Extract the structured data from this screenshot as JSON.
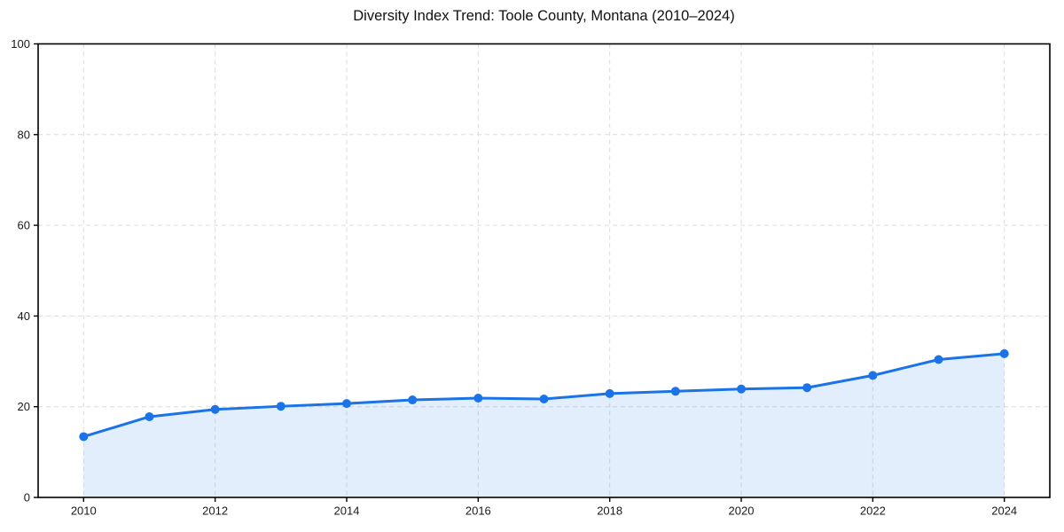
{
  "chart_data": {
    "type": "area",
    "title": "Diversity Index Trend: Toole County, Montana (2010–2024)",
    "series_name": "Diversity Index",
    "x": [
      2010,
      2011,
      2012,
      2013,
      2014,
      2015,
      2016,
      2017,
      2018,
      2019,
      2020,
      2021,
      2022,
      2023,
      2024
    ],
    "values": [
      13.4,
      17.8,
      19.4,
      20.1,
      20.7,
      21.5,
      21.9,
      21.7,
      22.9,
      23.4,
      23.9,
      24.2,
      26.9,
      30.4,
      31.7
    ],
    "xlabel": "",
    "ylabel": "",
    "xlim": [
      2010,
      2024
    ],
    "ylim": [
      0,
      100
    ],
    "xticks": [
      2010,
      2012,
      2014,
      2016,
      2018,
      2020,
      2022,
      2024
    ],
    "yticks": [
      0,
      20,
      40,
      60,
      80,
      100
    ],
    "grid": "dashed",
    "legend_position": "none",
    "colors": {
      "line": "#1a73e8",
      "marker": "#1a73e8",
      "fill": "rgba(26,115,232,0.12)",
      "grid": "#dcdcdc",
      "spine": "#000000",
      "tick_text": "#1a1a1a",
      "background": "#ffffff"
    }
  }
}
